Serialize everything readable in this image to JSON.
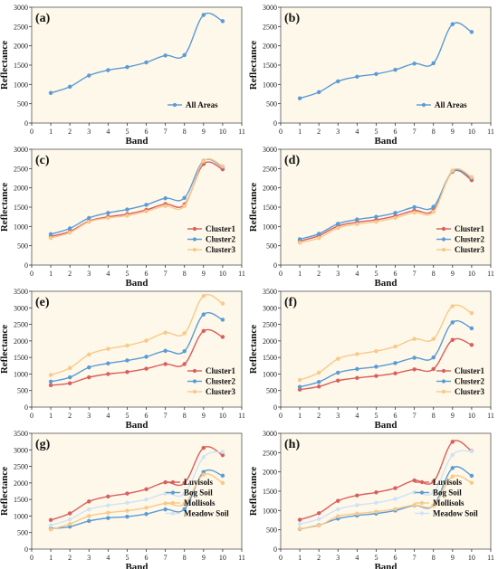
{
  "colors": {
    "red": "#d95f5f",
    "blue": "#5b9bd5",
    "orange": "#f8c98a",
    "lightblue": "#cfe3f5",
    "panel_bg": "#fdf8e9"
  },
  "chart_data": [
    {
      "type": "line",
      "label": "(a)",
      "xlabel": "Band",
      "ylabel": "Reflectance",
      "xlim": [
        0,
        11
      ],
      "ylim": [
        0,
        3000
      ],
      "legend_position": "bottom-right",
      "x": [
        1,
        2,
        3,
        4,
        5,
        6,
        7,
        8,
        9,
        10
      ],
      "series": [
        {
          "name": "All Areas",
          "color": "blue",
          "values": [
            780,
            940,
            1230,
            1370,
            1450,
            1570,
            1750,
            1760,
            2800,
            2640
          ]
        }
      ]
    },
    {
      "type": "line",
      "label": "(b)",
      "xlabel": "Band",
      "ylabel": "Reflectance",
      "xlim": [
        0,
        11
      ],
      "ylim": [
        0,
        3000
      ],
      "legend_position": "bottom-right",
      "x": [
        1,
        2,
        3,
        4,
        5,
        6,
        7,
        8,
        9,
        10
      ],
      "series": [
        {
          "name": "All Areas",
          "color": "blue",
          "values": [
            640,
            800,
            1080,
            1200,
            1270,
            1380,
            1540,
            1550,
            2560,
            2360
          ]
        }
      ]
    },
    {
      "type": "line",
      "label": "(c)",
      "xlabel": "Band",
      "ylabel": "Reflectance",
      "xlim": [
        0,
        11
      ],
      "ylim": [
        0,
        3000
      ],
      "legend_position": "bottom-right",
      "x": [
        1,
        2,
        3,
        4,
        5,
        6,
        7,
        8,
        9,
        10
      ],
      "series": [
        {
          "name": "Cluster1",
          "color": "red",
          "values": [
            740,
            870,
            1140,
            1250,
            1320,
            1430,
            1580,
            1570,
            2620,
            2480
          ]
        },
        {
          "name": "Cluster2",
          "color": "blue",
          "values": [
            800,
            950,
            1220,
            1350,
            1440,
            1560,
            1730,
            1740,
            2700,
            2540
          ]
        },
        {
          "name": "Cluster3",
          "color": "orange",
          "values": [
            700,
            840,
            1120,
            1220,
            1280,
            1390,
            1530,
            1530,
            2690,
            2560
          ]
        }
      ]
    },
    {
      "type": "line",
      "label": "(d)",
      "xlabel": "Band",
      "ylabel": "Reflectance",
      "xlim": [
        0,
        11
      ],
      "ylim": [
        0,
        3000
      ],
      "legend_position": "bottom-right",
      "x": [
        1,
        2,
        3,
        4,
        5,
        6,
        7,
        8,
        9,
        10
      ],
      "series": [
        {
          "name": "Cluster1",
          "color": "red",
          "values": [
            620,
            760,
            1010,
            1110,
            1170,
            1270,
            1410,
            1420,
            2420,
            2200
          ]
        },
        {
          "name": "Cluster2",
          "color": "blue",
          "values": [
            670,
            810,
            1070,
            1180,
            1250,
            1350,
            1500,
            1510,
            2430,
            2250
          ]
        },
        {
          "name": "Cluster3",
          "color": "orange",
          "values": [
            580,
            700,
            960,
            1060,
            1120,
            1220,
            1360,
            1380,
            2450,
            2280
          ]
        }
      ]
    },
    {
      "type": "line",
      "label": "(e)",
      "xlabel": "Band",
      "ylabel": "Reflectance",
      "xlim": [
        0,
        11
      ],
      "ylim": [
        0,
        3500
      ],
      "legend_position": "bottom-right",
      "x": [
        1,
        2,
        3,
        4,
        5,
        6,
        7,
        8,
        9,
        10
      ],
      "series": [
        {
          "name": "Cluster1",
          "color": "red",
          "values": [
            660,
            720,
            900,
            1000,
            1060,
            1160,
            1300,
            1300,
            2300,
            2120
          ]
        },
        {
          "name": "Cluster2",
          "color": "blue",
          "values": [
            770,
            900,
            1200,
            1320,
            1410,
            1520,
            1700,
            1690,
            2800,
            2640
          ]
        },
        {
          "name": "Cluster3",
          "color": "orange",
          "values": [
            970,
            1180,
            1590,
            1760,
            1860,
            2010,
            2250,
            2230,
            3360,
            3130
          ]
        }
      ]
    },
    {
      "type": "line",
      "label": "(f)",
      "xlabel": "Band",
      "ylabel": "Reflectance",
      "xlim": [
        0,
        11
      ],
      "ylim": [
        0,
        3500
      ],
      "legend_position": "bottom-right",
      "x": [
        1,
        2,
        3,
        4,
        5,
        6,
        7,
        8,
        9,
        10
      ],
      "series": [
        {
          "name": "Cluster1",
          "color": "red",
          "values": [
            530,
            620,
            800,
            880,
            940,
            1020,
            1140,
            1150,
            2030,
            1880
          ]
        },
        {
          "name": "Cluster2",
          "color": "blue",
          "values": [
            610,
            760,
            1040,
            1150,
            1220,
            1330,
            1490,
            1500,
            2560,
            2380
          ]
        },
        {
          "name": "Cluster3",
          "color": "orange",
          "values": [
            820,
            1040,
            1460,
            1600,
            1690,
            1830,
            2060,
            2060,
            3050,
            2840
          ]
        }
      ]
    },
    {
      "type": "line",
      "label": "(g)",
      "xlabel": "Band",
      "ylabel": "Reflectance",
      "xlim": [
        0,
        11
      ],
      "ylim": [
        0,
        3500
      ],
      "legend_position": "right",
      "x": [
        1,
        2,
        3,
        4,
        5,
        6,
        7,
        8,
        9,
        10
      ],
      "series": [
        {
          "name": "Luvisols",
          "color": "red",
          "values": [
            880,
            1080,
            1440,
            1590,
            1680,
            1810,
            2020,
            2000,
            3060,
            2840
          ]
        },
        {
          "name": "Bog Soil",
          "color": "blue",
          "values": [
            620,
            680,
            850,
            940,
            980,
            1060,
            1200,
            1210,
            2330,
            2220
          ]
        },
        {
          "name": "Mollisols",
          "color": "orange",
          "values": [
            590,
            760,
            1000,
            1100,
            1160,
            1250,
            1380,
            1370,
            2250,
            2000
          ]
        },
        {
          "name": "Meadow Soil",
          "color": "lightblue",
          "values": [
            720,
            900,
            1200,
            1320,
            1400,
            1500,
            1680,
            1680,
            2780,
            2940
          ]
        }
      ]
    },
    {
      "type": "line",
      "label": "(h)",
      "xlabel": "Band",
      "ylabel": "Reflectance",
      "xlim": [
        0,
        11
      ],
      "ylim": [
        0,
        3000
      ],
      "legend_position": "right",
      "x": [
        1,
        2,
        3,
        4,
        5,
        6,
        7,
        8,
        9,
        10
      ],
      "series": [
        {
          "name": "Luvisols",
          "color": "red",
          "values": [
            760,
            930,
            1250,
            1390,
            1470,
            1580,
            1780,
            1750,
            2780,
            2540
          ]
        },
        {
          "name": "Bog Soil",
          "color": "blue",
          "values": [
            520,
            620,
            790,
            870,
            920,
            1000,
            1130,
            1130,
            2100,
            1900
          ]
        },
        {
          "name": "Mollisols",
          "color": "orange",
          "values": [
            530,
            610,
            850,
            920,
            970,
            1040,
            1140,
            1130,
            1880,
            1720
          ]
        },
        {
          "name": "Meadow Soil",
          "color": "lightblue",
          "values": [
            650,
            780,
            1030,
            1140,
            1200,
            1300,
            1470,
            1470,
            2440,
            2530
          ]
        }
      ]
    }
  ]
}
